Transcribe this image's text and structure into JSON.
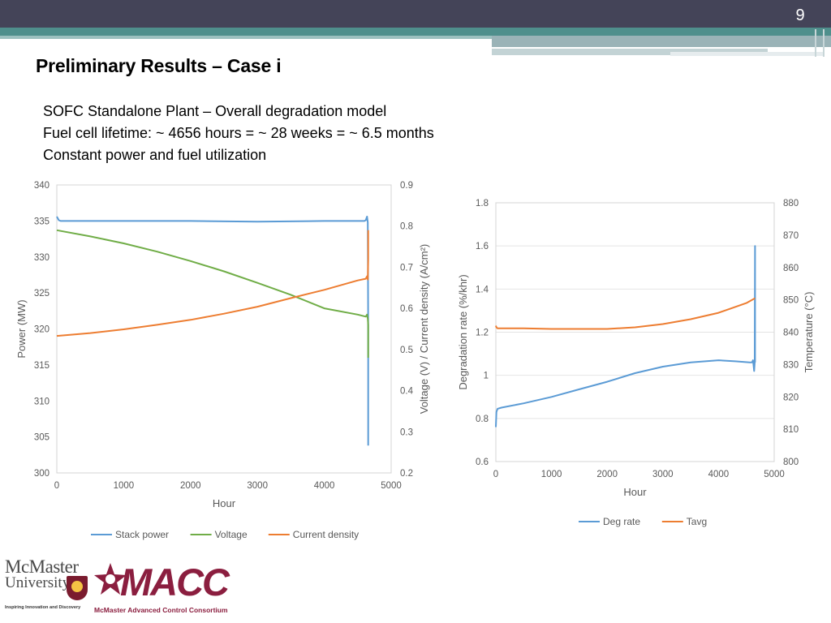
{
  "slide": {
    "number": "9",
    "title": "Preliminary Results – Case i",
    "lines": [
      "SOFC Standalone Plant – Overall degradation model",
      "Fuel cell lifetime: ~ 4656 hours = ~ 28 weeks = ~ 6.5 months",
      "Constant power and fuel utilization"
    ]
  },
  "logos": {
    "mcmaster_line1": "McMaster",
    "mcmaster_line2": "University",
    "mcmaster_tagline": "Inspiring Innovation and Discovery",
    "macc_word": "MACC",
    "macc_sub": "McMaster Advanced Control Consortium"
  },
  "chart_data": [
    {
      "type": "line",
      "xlabel": "Hour",
      "ylabel": "Power (MW)",
      "y2label": "Voltage (V) / Current density (A/cm²)",
      "xlim": [
        0,
        5000
      ],
      "ylim": [
        300,
        340
      ],
      "y2lim": [
        0.2,
        0.9
      ],
      "xticks": [
        "0",
        "1000",
        "2000",
        "3000",
        "4000",
        "5000"
      ],
      "yticks": [
        "300",
        "305",
        "310",
        "315",
        "320",
        "325",
        "330",
        "335",
        "340"
      ],
      "y2ticks": [
        "0.2",
        "0.3",
        "0.4",
        "0.5",
        "0.6",
        "0.7",
        "0.8",
        "0.9"
      ],
      "grid": false,
      "legend_position": "bottom",
      "series": [
        {
          "name": "Stack power",
          "axis": "left",
          "color": "#5b9bd5",
          "x": [
            0,
            30,
            60,
            500,
            1000,
            2000,
            3000,
            4000,
            4500,
            4600,
            4620,
            4640,
            4650,
            4656,
            4656
          ],
          "y": [
            335.6,
            335.1,
            335.0,
            335.0,
            335.0,
            335.0,
            334.9,
            335.0,
            335.0,
            335.0,
            335.1,
            335.6,
            334.8,
            320.0,
            303.8
          ]
        },
        {
          "name": "Voltage",
          "axis": "right",
          "color": "#70ad47",
          "x": [
            0,
            500,
            1000,
            1500,
            2000,
            2500,
            3000,
            3500,
            4000,
            4500,
            4620,
            4640,
            4650,
            4656,
            4656
          ],
          "y": [
            0.79,
            0.775,
            0.758,
            0.738,
            0.715,
            0.69,
            0.662,
            0.633,
            0.6,
            0.585,
            0.58,
            0.585,
            0.575,
            0.56,
            0.48
          ]
        },
        {
          "name": "Current density",
          "axis": "right",
          "color": "#ed7d31",
          "x": [
            0,
            500,
            1000,
            1500,
            2000,
            2500,
            3000,
            3500,
            4000,
            4500,
            4620,
            4640,
            4650,
            4656,
            4656
          ],
          "y": [
            0.533,
            0.54,
            0.549,
            0.56,
            0.572,
            0.587,
            0.604,
            0.625,
            0.645,
            0.668,
            0.672,
            0.678,
            0.67,
            0.72,
            0.79
          ]
        }
      ]
    },
    {
      "type": "line",
      "xlabel": "Hour",
      "ylabel": "Degradation rate (%/khr)",
      "y2label": "Temperature (°C)",
      "xlim": [
        0,
        5000
      ],
      "ylim": [
        0.6,
        1.8
      ],
      "y2lim": [
        800,
        880
      ],
      "xticks": [
        "0",
        "1000",
        "2000",
        "3000",
        "4000",
        "5000"
      ],
      "yticks": [
        "0.6",
        "0.8",
        "1",
        "1.2",
        "1.4",
        "1.6",
        "1.8"
      ],
      "y2ticks": [
        "800",
        "810",
        "820",
        "830",
        "840",
        "850",
        "860",
        "870",
        "880"
      ],
      "grid": true,
      "legend_position": "bottom",
      "series": [
        {
          "name": "Deg rate",
          "axis": "left",
          "color": "#5b9bd5",
          "x": [
            0,
            10,
            30,
            100,
            500,
            1000,
            1500,
            2000,
            2500,
            3000,
            3500,
            4000,
            4300,
            4560,
            4600,
            4620,
            4640,
            4650,
            4656,
            4656
          ],
          "y": [
            0.76,
            0.83,
            0.845,
            0.85,
            0.87,
            0.9,
            0.935,
            0.97,
            1.01,
            1.04,
            1.06,
            1.07,
            1.065,
            1.06,
            1.06,
            1.07,
            1.02,
            1.06,
            1.6,
            1.06
          ]
        },
        {
          "name": "Tavg",
          "axis": "right",
          "color": "#ed7d31",
          "x": [
            0,
            10,
            30,
            500,
            1000,
            1500,
            2000,
            2500,
            3000,
            3500,
            4000,
            4500,
            4656
          ],
          "y": [
            842,
            841.5,
            841.2,
            841.2,
            841,
            841,
            841,
            841.5,
            842.5,
            844,
            846,
            849,
            850.5
          ]
        }
      ]
    }
  ]
}
